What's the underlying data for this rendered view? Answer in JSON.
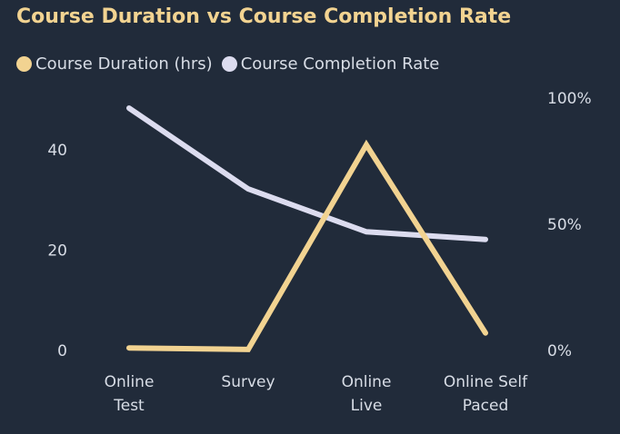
{
  "chart_data": {
    "type": "line",
    "title": "Course Duration vs Course Completion Rate",
    "categories": [
      [
        "Online",
        "Test"
      ],
      [
        "Survey"
      ],
      [
        "Online",
        "Live"
      ],
      [
        "Online Self",
        "Paced"
      ]
    ],
    "series": [
      {
        "name": "Course Duration (hrs)",
        "axis": "left",
        "color": "#f2d391",
        "values": [
          0.5,
          0.2,
          41,
          3.5
        ]
      },
      {
        "name": "Course Completion Rate",
        "axis": "right",
        "color": "#dcdcef",
        "values": [
          96,
          64,
          47,
          44
        ]
      }
    ],
    "y_left": {
      "ticks": [
        0,
        20,
        40
      ],
      "range": [
        0,
        50
      ]
    },
    "y_right": {
      "ticks": [
        "0%",
        "50%",
        "100%"
      ],
      "range": [
        0,
        100
      ],
      "unit": "%"
    },
    "grid": false,
    "legend": "top-left"
  }
}
